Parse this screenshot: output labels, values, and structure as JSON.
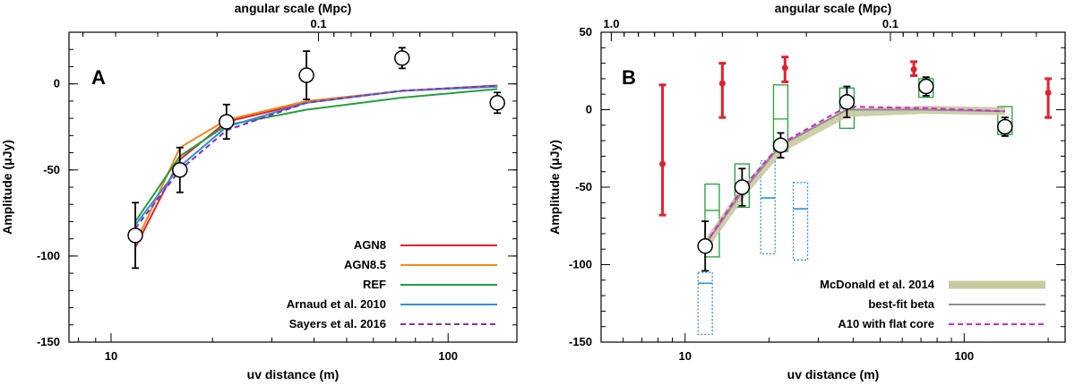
{
  "chart_data": [
    {
      "type": "line",
      "panel_label": "A",
      "xlabel": "uv distance (m)",
      "ylabel": "Amplitude (μJy)",
      "top_axis_label": "angular scale (Mpc)",
      "xscale": "log",
      "xlim": [
        7.5,
        160
      ],
      "ylim": [
        -150,
        30
      ],
      "x_ticks": [
        10,
        100
      ],
      "x_tick_labels": [
        "10",
        "100"
      ],
      "y_ticks": [
        -150,
        -100,
        -50,
        0
      ],
      "y_tick_labels": [
        "-150",
        "-100",
        "-50",
        "0"
      ],
      "top_ticks_uv": [
        41.25
      ],
      "top_tick_labels": [
        "0.1"
      ],
      "series": [
        {
          "name": "AGN8",
          "color": "#e4202c",
          "dash": false,
          "x": [
            11.8,
            16,
            22,
            38,
            73,
            140
          ],
          "y": [
            -95,
            -44,
            -22,
            -11,
            -4,
            -1
          ]
        },
        {
          "name": "AGN8.5",
          "color": "#ef8a1c",
          "dash": false,
          "x": [
            11.8,
            16,
            22,
            38,
            73,
            140
          ],
          "y": [
            -93,
            -37,
            -21,
            -10,
            -4,
            -1.5
          ]
        },
        {
          "name": "REF",
          "color": "#23a03c",
          "dash": false,
          "x": [
            11.8,
            16,
            22,
            38,
            73,
            140
          ],
          "y": [
            -80,
            -42,
            -24,
            -15,
            -8,
            -3
          ]
        },
        {
          "name": "Arnaud et al. 2010",
          "color": "#2b8fe0",
          "dash": false,
          "x": [
            11.8,
            16,
            22,
            38,
            73,
            140
          ],
          "y": [
            -82,
            -48,
            -25,
            -11,
            -4,
            -1.5
          ]
        },
        {
          "name": "Sayers et al. 2016",
          "color": "#8a2cb0",
          "dash": true,
          "x": [
            11.8,
            16,
            22,
            38,
            73,
            140
          ],
          "y": [
            -84,
            -50,
            -27,
            -11,
            -4,
            -1
          ]
        }
      ],
      "points": [
        {
          "x": 11.8,
          "y": -88,
          "err": 19
        },
        {
          "x": 16,
          "y": -50,
          "err": 13
        },
        {
          "x": 22,
          "y": -22,
          "err": 10
        },
        {
          "x": 38,
          "y": 5,
          "err": 14
        },
        {
          "x": 73,
          "y": 15,
          "err": 6
        },
        {
          "x": 140,
          "y": -11,
          "err": 6
        }
      ],
      "legend_position": "bottom-right"
    },
    {
      "type": "line",
      "panel_label": "B",
      "xlabel": "uv distance (m)",
      "ylabel": "Amplitude (μJy)",
      "top_axis_label": "angular scale (Mpc)",
      "xscale": "log",
      "xlim": [
        5,
        230
      ],
      "ylim": [
        -150,
        50
      ],
      "x_ticks": [
        10,
        100
      ],
      "x_tick_labels": [
        "10",
        "100"
      ],
      "y_ticks": [
        -150,
        -100,
        -50,
        0,
        50
      ],
      "y_tick_labels": [
        "-150",
        "-100",
        "-50",
        "0",
        "50"
      ],
      "top_ticks_uv": [
        5.44,
        54.4
      ],
      "top_tick_labels": [
        "1.0",
        "0.1"
      ],
      "series": [
        {
          "name": "McDonald et al. 2014",
          "color": "#c9c9a0",
          "dash": false,
          "band": true,
          "x": [
            11.8,
            16,
            22,
            38,
            73,
            140
          ],
          "y": [
            -88,
            -54,
            -25,
            -2,
            0,
            -1
          ]
        },
        {
          "name": "best-fit beta",
          "color": "#8e8e8e",
          "dash": false,
          "x": [
            11.8,
            16,
            22,
            38,
            73,
            140
          ],
          "y": [
            -87,
            -53,
            -23,
            0,
            0,
            -1
          ]
        },
        {
          "name": "A10 with flat core",
          "color": "#e020d8",
          "dash": true,
          "x": [
            11.8,
            16,
            22,
            38,
            73,
            140
          ],
          "y": [
            -87,
            -51,
            -22,
            2,
            1,
            -1
          ]
        }
      ],
      "points": [
        {
          "x": 11.8,
          "y": -88,
          "err": 16
        },
        {
          "x": 16,
          "y": -50,
          "err": 12
        },
        {
          "x": 22,
          "y": -23,
          "err": 8
        },
        {
          "x": 38,
          "y": 5,
          "err": 10
        },
        {
          "x": 73,
          "y": 15,
          "err": 6
        },
        {
          "x": 140,
          "y": -11,
          "err": 6
        }
      ],
      "red_points": [
        {
          "x": 8.3,
          "y": -35,
          "lo": -68,
          "hi": 16
        },
        {
          "x": 13.6,
          "y": 17,
          "lo": -5,
          "hi": 30
        },
        {
          "x": 22.8,
          "y": 27,
          "lo": 18,
          "hi": 34
        },
        {
          "x": 66,
          "y": 26,
          "lo": 22,
          "hi": 31
        },
        {
          "x": 200,
          "y": 11,
          "lo": -5,
          "hi": 20
        }
      ],
      "green_boxes": [
        {
          "x": 12.5,
          "lo": -95,
          "hi": -48,
          "mid": -65
        },
        {
          "x": 16,
          "lo": -63,
          "hi": -35,
          "mid": -48
        },
        {
          "x": 22,
          "lo": -27,
          "hi": 16,
          "mid": -6
        },
        {
          "x": 38,
          "lo": -12,
          "hi": 14,
          "mid": 1
        },
        {
          "x": 73,
          "lo": 8,
          "hi": 20,
          "mid": 14
        },
        {
          "x": 140,
          "lo": -16,
          "hi": 2,
          "mid": -8
        }
      ],
      "blue_boxes": [
        {
          "x": 11.8,
          "lo": -145,
          "hi": -105,
          "mid": -112
        },
        {
          "x": 19.8,
          "lo": -93,
          "hi": -33,
          "mid": -57
        },
        {
          "x": 25.9,
          "lo": -97,
          "hi": -47,
          "mid": -64
        }
      ],
      "legend_position": "bottom-right"
    }
  ]
}
